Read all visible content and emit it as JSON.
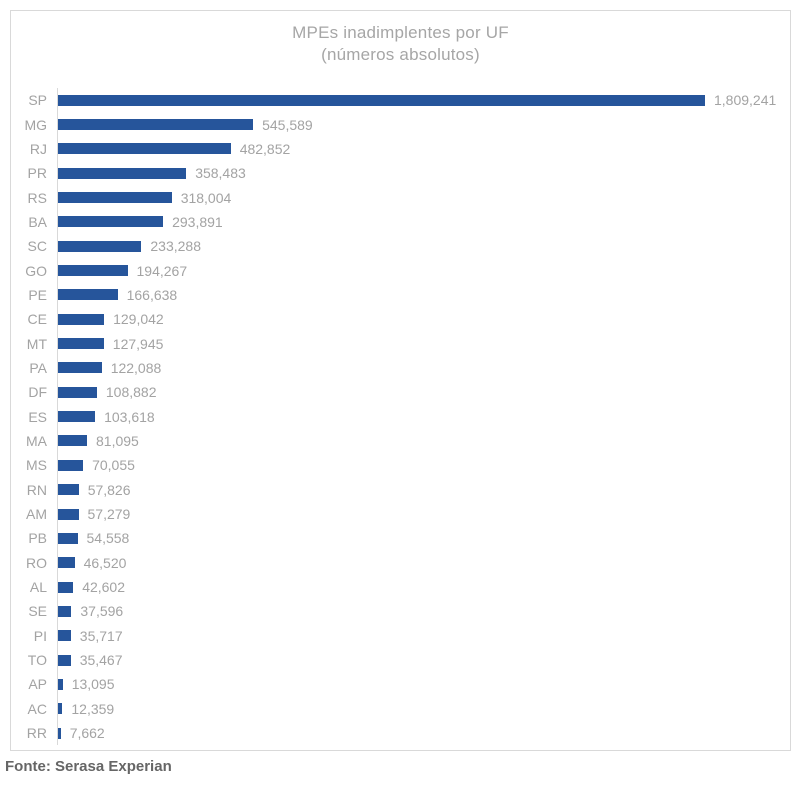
{
  "chart_data": {
    "type": "bar",
    "orientation": "horizontal",
    "title": "MPEs inadimplentes por UF",
    "subtitle": "(números absolutos)",
    "xlabel": "",
    "ylabel": "",
    "xlim": [
      0,
      1850000
    ],
    "grid": false,
    "legend": false,
    "value_labels": "outside-end, thousands comma format",
    "categories": [
      "SP",
      "MG",
      "RJ",
      "PR",
      "RS",
      "BA",
      "SC",
      "GO",
      "PE",
      "CE",
      "MT",
      "PA",
      "DF",
      "ES",
      "MA",
      "MS",
      "RN",
      "AM",
      "PB",
      "RO",
      "AL",
      "SE",
      "PI",
      "TO",
      "AP",
      "AC",
      "RR"
    ],
    "values": [
      1809241,
      545589,
      482852,
      358483,
      318004,
      293891,
      233288,
      194267,
      166638,
      129042,
      127945,
      122088,
      108882,
      103618,
      81095,
      70055,
      57826,
      57279,
      54558,
      46520,
      42602,
      37596,
      35717,
      35467,
      13095,
      12359,
      7662
    ],
    "colors": {
      "bar": "#26559b",
      "title_text": "#a6a6a6",
      "axis_labels": "#a3a3a3",
      "axis_line": "#d9d9d9",
      "frame_border": "#d9d9d9",
      "background": "#ffffff"
    }
  },
  "source": {
    "label": "Fonte: Serasa Experian"
  }
}
